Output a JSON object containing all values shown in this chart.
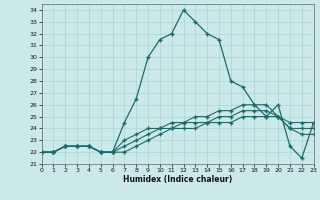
{
  "xlabel": "Humidex (Indice chaleur)",
  "background_color": "#cce9e9",
  "grid_color": "#aad4d4",
  "line_color": "#1a6b6b",
  "xlim": [
    0,
    23
  ],
  "ylim": [
    21,
    34.5
  ],
  "xtick_labels": [
    "0",
    "1",
    "2",
    "3",
    "4",
    "5",
    "6",
    "7",
    "8",
    "9",
    "10",
    "11",
    "12",
    "13",
    "14",
    "15",
    "16",
    "17",
    "18",
    "19",
    "20",
    "21",
    "22",
    "23"
  ],
  "yticks": [
    21,
    22,
    23,
    24,
    25,
    26,
    27,
    28,
    29,
    30,
    31,
    32,
    33,
    34
  ],
  "series": {
    "main": [
      22.0,
      22.0,
      22.5,
      22.5,
      22.5,
      22.0,
      22.0,
      24.5,
      26.5,
      30.0,
      31.5,
      32.0,
      34.0,
      33.0,
      32.0,
      31.5,
      28.0,
      27.5,
      26.0,
      25.0,
      26.0,
      22.5,
      21.5,
      24.5
    ],
    "line2": [
      22.0,
      22.0,
      22.5,
      22.5,
      22.5,
      22.0,
      22.0,
      23.0,
      23.5,
      24.0,
      24.0,
      24.5,
      24.5,
      25.0,
      25.0,
      25.5,
      25.5,
      26.0,
      26.0,
      26.0,
      25.0,
      24.5,
      24.5,
      24.5
    ],
    "line3": [
      22.0,
      22.0,
      22.5,
      22.5,
      22.5,
      22.0,
      22.0,
      22.5,
      23.0,
      23.5,
      24.0,
      24.0,
      24.5,
      24.5,
      24.5,
      25.0,
      25.0,
      25.5,
      25.5,
      25.5,
      25.0,
      24.0,
      24.0,
      24.0
    ],
    "line4": [
      22.0,
      22.0,
      22.5,
      22.5,
      22.5,
      22.0,
      22.0,
      22.0,
      22.5,
      23.0,
      23.5,
      24.0,
      24.0,
      24.0,
      24.5,
      24.5,
      24.5,
      25.0,
      25.0,
      25.0,
      25.0,
      24.0,
      23.5,
      23.5
    ]
  }
}
